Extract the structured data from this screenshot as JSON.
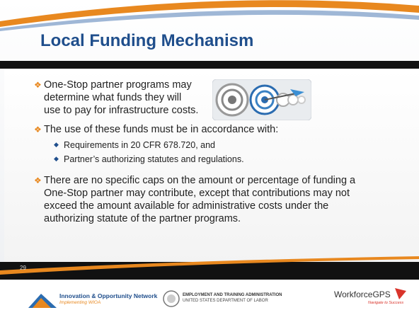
{
  "slide": {
    "title": "Local Funding Mechanism",
    "bullets": [
      {
        "text": "One-Stop partner programs may determine what funds they will use to pay for infrastructure costs."
      },
      {
        "text": "The use of these funds must be in accordance with:",
        "sub": [
          "Requirements in 20 CFR 678.720, and",
          "Partner’s authorizing statutes and regulations."
        ]
      },
      {
        "text": "There are no specific caps on the amount or percentage of funding a One-Stop partner may contribute, except that contributions may not exceed the amount available for administrative costs under the authorizing statute of the partner programs."
      }
    ],
    "page_number": "29"
  },
  "footer": {
    "ion": {
      "name": "Innovation & Opportunity Network",
      "tagline": "Implementing WIOA"
    },
    "eta": {
      "name": "EMPLOYMENT AND TRAINING ADMINISTRATION",
      "department": "UNITED STATES DEPARTMENT OF LABOR"
    },
    "wgps": {
      "name": "WorkforceGPS",
      "tagline": "Navigate to Success"
    }
  }
}
